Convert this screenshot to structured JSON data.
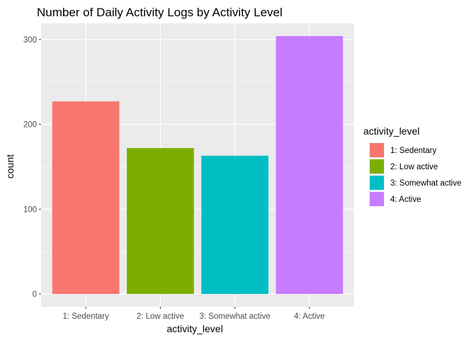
{
  "chart_data": {
    "type": "bar",
    "title": "Number of Daily Activity Logs by Activity Level",
    "xlabel": "activity_level",
    "ylabel": "count",
    "categories": [
      "1: Sedentary",
      "2: Low active",
      "3: Somewhat active",
      "4: Active"
    ],
    "values": [
      227,
      172,
      163,
      304
    ],
    "colors": [
      "#F8766D",
      "#7CAE00",
      "#00BFC4",
      "#C77CFF"
    ],
    "ylim": [
      -15,
      319
    ],
    "yticks": [
      0,
      100,
      200,
      300
    ],
    "ytick_labels": [
      "0",
      "100",
      "200",
      "300"
    ],
    "grid": true,
    "panel_background": "#EBEBEB",
    "legend": {
      "title": "activity_level",
      "position": "right",
      "entries": [
        "1: Sedentary",
        "2: Low active",
        "3: Somewhat active",
        "4: Active"
      ]
    }
  }
}
